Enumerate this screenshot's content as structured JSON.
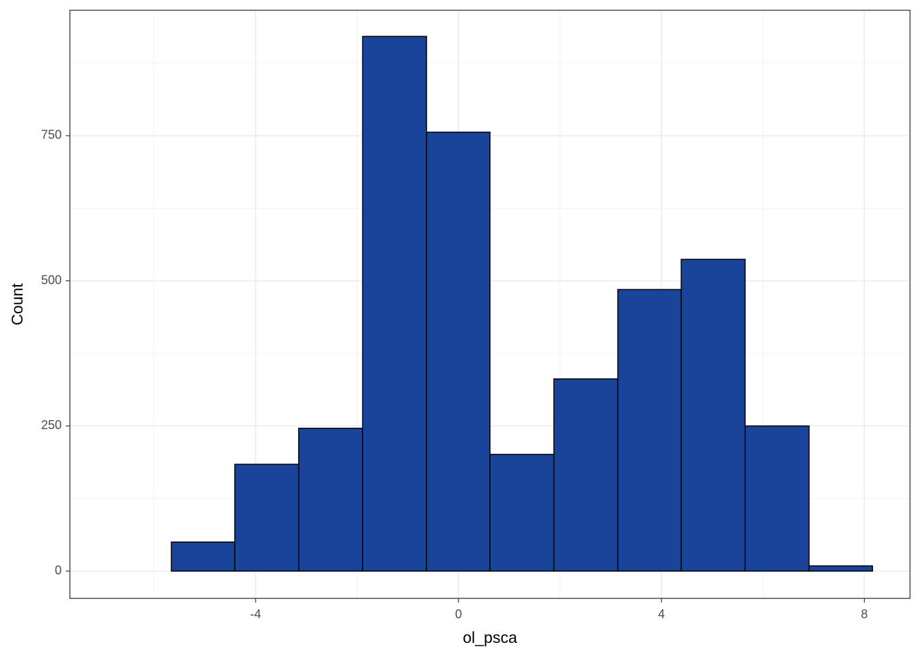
{
  "chart_data": {
    "type": "histogram",
    "x_label": "ol_psca",
    "y_label": "Count",
    "bins": [
      -6.92,
      -5.66,
      -4.41,
      -3.15,
      -1.89,
      -0.63,
      0.62,
      1.88,
      3.14,
      4.39,
      5.65,
      6.91,
      8.16
    ],
    "values": [
      0,
      50,
      184,
      246,
      921,
      756,
      201,
      331,
      485,
      537,
      250,
      9
    ],
    "color": "#1a4499",
    "edge_color": "#000000",
    "xlim": [
      -7.66,
      8.9
    ],
    "ylim": [
      -47,
      966
    ],
    "xticks": [
      -4,
      0,
      4,
      8
    ],
    "yticks": [
      0,
      250,
      500,
      750
    ],
    "x_minor_grid": [
      -6,
      -2,
      2,
      6
    ],
    "y_minor_grid": [
      125,
      375,
      625,
      875
    ],
    "grid": true
  }
}
